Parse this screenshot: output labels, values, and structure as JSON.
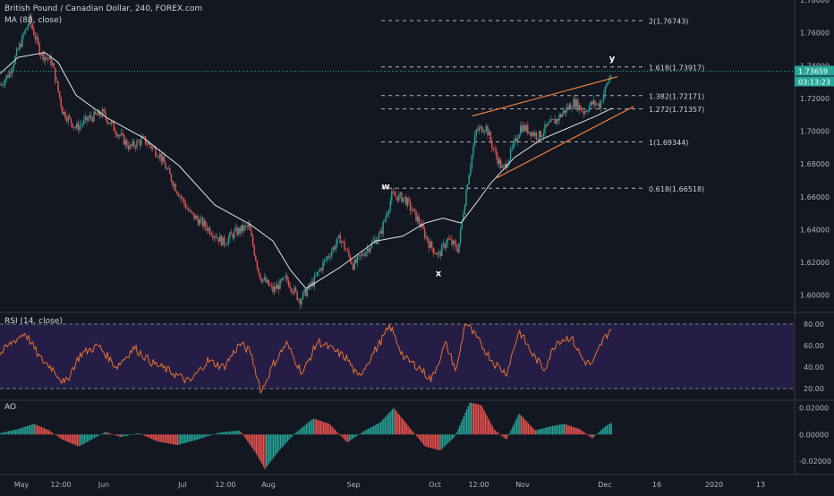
{
  "header": {
    "symbol_title": "British Pound / Canadian Dollar, 240, FOREX.com",
    "ma_legend": "MA (80, close)",
    "rsi_legend": "RSI (14, close)",
    "ao_legend": "AO"
  },
  "price_badges": {
    "last_price": "1.73659",
    "countdown": "03:13:23"
  },
  "colors": {
    "background": "#131722",
    "up_candle": "#26a69a",
    "down_candle": "#ef5350",
    "ma_line": "#e0e3eb",
    "rsi_line": "#f57c2c",
    "rsi_band": "#2a1e4d",
    "ao_up": "#26a69a",
    "ao_down": "#ef5350",
    "wedge_line": "#f2813a",
    "last_price": "#26a69a"
  },
  "chart_data": [
    {
      "type": "candlestick",
      "ylim": [
        1.59,
        1.78
      ],
      "y_ticks": [
        "1.78000",
        "1.76000",
        "1.74000",
        "1.72000",
        "1.70000",
        "1.68000",
        "1.66000",
        "1.64000",
        "1.62000",
        "1.60000"
      ],
      "x_ticks": [
        "May",
        "12:00",
        "Jun",
        "Jul",
        "12:00",
        "Aug",
        "Sep",
        "Oct",
        "12:00",
        "Nov",
        "Dec",
        "16",
        "2020",
        "13"
      ],
      "price_path": [
        {
          "t": 0,
          "p": 1.728
        },
        {
          "t": 10,
          "p": 1.735
        },
        {
          "t": 22,
          "p": 1.752
        },
        {
          "t": 33,
          "p": 1.768
        },
        {
          "t": 45,
          "p": 1.748
        },
        {
          "t": 58,
          "p": 1.742
        },
        {
          "t": 70,
          "p": 1.712
        },
        {
          "t": 85,
          "p": 1.702
        },
        {
          "t": 100,
          "p": 1.708
        },
        {
          "t": 115,
          "p": 1.711
        },
        {
          "t": 130,
          "p": 1.7
        },
        {
          "t": 145,
          "p": 1.69
        },
        {
          "t": 160,
          "p": 1.695
        },
        {
          "t": 178,
          "p": 1.686
        },
        {
          "t": 195,
          "p": 1.667
        },
        {
          "t": 212,
          "p": 1.65
        },
        {
          "t": 230,
          "p": 1.642
        },
        {
          "t": 250,
          "p": 1.632
        },
        {
          "t": 262,
          "p": 1.638
        },
        {
          "t": 278,
          "p": 1.642
        },
        {
          "t": 290,
          "p": 1.612
        },
        {
          "t": 305,
          "p": 1.603
        },
        {
          "t": 320,
          "p": 1.61
        },
        {
          "t": 335,
          "p": 1.597
        },
        {
          "t": 350,
          "p": 1.608
        },
        {
          "t": 362,
          "p": 1.62
        },
        {
          "t": 380,
          "p": 1.635
        },
        {
          "t": 395,
          "p": 1.618
        },
        {
          "t": 410,
          "p": 1.628
        },
        {
          "t": 425,
          "p": 1.637
        },
        {
          "t": 438,
          "p": 1.661
        },
        {
          "t": 452,
          "p": 1.659
        },
        {
          "t": 468,
          "p": 1.645
        },
        {
          "t": 480,
          "p": 1.631
        },
        {
          "t": 490,
          "p": 1.624
        },
        {
          "t": 500,
          "p": 1.634
        },
        {
          "t": 512,
          "p": 1.628
        },
        {
          "t": 522,
          "p": 1.668
        },
        {
          "t": 532,
          "p": 1.7
        },
        {
          "t": 543,
          "p": 1.703
        },
        {
          "t": 552,
          "p": 1.688
        },
        {
          "t": 562,
          "p": 1.676
        },
        {
          "t": 572,
          "p": 1.688
        },
        {
          "t": 582,
          "p": 1.703
        },
        {
          "t": 592,
          "p": 1.7
        },
        {
          "t": 602,
          "p": 1.697
        },
        {
          "t": 612,
          "p": 1.703
        },
        {
          "t": 622,
          "p": 1.707
        },
        {
          "t": 632,
          "p": 1.713
        },
        {
          "t": 642,
          "p": 1.718
        },
        {
          "t": 652,
          "p": 1.712
        },
        {
          "t": 662,
          "p": 1.717
        },
        {
          "t": 670,
          "p": 1.716
        },
        {
          "t": 678,
          "p": 1.728
        },
        {
          "t": 684,
          "p": 1.7366
        }
      ],
      "ma_path": [
        {
          "t": 0,
          "p": 1.735
        },
        {
          "t": 20,
          "p": 1.745
        },
        {
          "t": 50,
          "p": 1.748
        },
        {
          "t": 65,
          "p": 1.742
        },
        {
          "t": 85,
          "p": 1.722
        },
        {
          "t": 120,
          "p": 1.708
        },
        {
          "t": 160,
          "p": 1.696
        },
        {
          "t": 200,
          "p": 1.679
        },
        {
          "t": 240,
          "p": 1.655
        },
        {
          "t": 280,
          "p": 1.643
        },
        {
          "t": 305,
          "p": 1.633
        },
        {
          "t": 325,
          "p": 1.615
        },
        {
          "t": 342,
          "p": 1.604
        },
        {
          "t": 380,
          "p": 1.617
        },
        {
          "t": 420,
          "p": 1.633
        },
        {
          "t": 450,
          "p": 1.636
        },
        {
          "t": 475,
          "p": 1.644
        },
        {
          "t": 495,
          "p": 1.647
        },
        {
          "t": 515,
          "p": 1.644
        },
        {
          "t": 532,
          "p": 1.656
        },
        {
          "t": 548,
          "p": 1.668
        },
        {
          "t": 575,
          "p": 1.684
        },
        {
          "t": 605,
          "p": 1.695
        },
        {
          "t": 635,
          "p": 1.702
        },
        {
          "t": 665,
          "p": 1.709
        },
        {
          "t": 684,
          "p": 1.714
        }
      ],
      "last_price": 1.73659,
      "fib_levels": [
        {
          "label": "2(1.76743)",
          "value": 1.76743
        },
        {
          "label": "1.618(1.73917)",
          "value": 1.73917
        },
        {
          "label": "1.382(1.72171)",
          "value": 1.72171
        },
        {
          "label": "1.272(1.71357)",
          "value": 1.71357
        },
        {
          "label": "1(1.69344)",
          "value": 1.69344
        },
        {
          "label": "0.618(1.66518)",
          "value": 1.66518
        }
      ],
      "wave_labels": [
        {
          "label": "w",
          "t": 431,
          "p": 1.6645
        },
        {
          "label": "x",
          "t": 490,
          "p": 1.6115
        },
        {
          "label": "y",
          "t": 684,
          "p": 1.7425
        }
      ],
      "wedge_lines": [
        {
          "from": {
            "t": 528,
            "p": 1.7093
          },
          "to": {
            "t": 690,
            "p": 1.7332
          }
        },
        {
          "from": {
            "t": 555,
            "p": 1.6715
          },
          "to": {
            "t": 708,
            "p": 1.715
          }
        }
      ]
    },
    {
      "type": "line",
      "name": "RSI (14, close)",
      "ylim": [
        10,
        90
      ],
      "y_ticks": [
        "80.00",
        "60.00",
        "40.00",
        "20.00"
      ],
      "band": [
        20,
        80
      ],
      "rsi_path": [
        {
          "t": 0,
          "p": 52
        },
        {
          "t": 12,
          "p": 62
        },
        {
          "t": 28,
          "p": 72
        },
        {
          "t": 45,
          "p": 48
        },
        {
          "t": 60,
          "p": 38
        },
        {
          "t": 72,
          "p": 24
        },
        {
          "t": 90,
          "p": 52
        },
        {
          "t": 110,
          "p": 60
        },
        {
          "t": 130,
          "p": 40
        },
        {
          "t": 150,
          "p": 58
        },
        {
          "t": 170,
          "p": 44
        },
        {
          "t": 190,
          "p": 36
        },
        {
          "t": 212,
          "p": 26
        },
        {
          "t": 232,
          "p": 46
        },
        {
          "t": 250,
          "p": 40
        },
        {
          "t": 268,
          "p": 62
        },
        {
          "t": 280,
          "p": 54
        },
        {
          "t": 292,
          "p": 17
        },
        {
          "t": 305,
          "p": 42
        },
        {
          "t": 320,
          "p": 62
        },
        {
          "t": 338,
          "p": 34
        },
        {
          "t": 355,
          "p": 64
        },
        {
          "t": 372,
          "p": 56
        },
        {
          "t": 388,
          "p": 48
        },
        {
          "t": 400,
          "p": 30
        },
        {
          "t": 418,
          "p": 54
        },
        {
          "t": 436,
          "p": 78
        },
        {
          "t": 452,
          "p": 48
        },
        {
          "t": 468,
          "p": 40
        },
        {
          "t": 482,
          "p": 28
        },
        {
          "t": 498,
          "p": 62
        },
        {
          "t": 510,
          "p": 36
        },
        {
          "t": 520,
          "p": 82
        },
        {
          "t": 535,
          "p": 64
        },
        {
          "t": 552,
          "p": 44
        },
        {
          "t": 566,
          "p": 34
        },
        {
          "t": 580,
          "p": 74
        },
        {
          "t": 595,
          "p": 52
        },
        {
          "t": 608,
          "p": 38
        },
        {
          "t": 622,
          "p": 64
        },
        {
          "t": 638,
          "p": 68
        },
        {
          "t": 652,
          "p": 46
        },
        {
          "t": 662,
          "p": 42
        },
        {
          "t": 672,
          "p": 62
        },
        {
          "t": 684,
          "p": 78
        }
      ]
    },
    {
      "type": "bar",
      "name": "AO",
      "ylim": [
        -0.03,
        0.025
      ],
      "y_ticks": [
        "0.02000",
        "0.00000",
        "-0.02000"
      ],
      "ao_path": [
        {
          "t": 0,
          "p": 0.001
        },
        {
          "t": 20,
          "p": 0.004
        },
        {
          "t": 38,
          "p": 0.008
        },
        {
          "t": 55,
          "p": 0.003
        },
        {
          "t": 70,
          "p": -0.004
        },
        {
          "t": 88,
          "p": -0.009
        },
        {
          "t": 102,
          "p": -0.004
        },
        {
          "t": 118,
          "p": 0.002
        },
        {
          "t": 135,
          "p": -0.002
        },
        {
          "t": 155,
          "p": 0.001
        },
        {
          "t": 175,
          "p": -0.005
        },
        {
          "t": 198,
          "p": -0.008
        },
        {
          "t": 220,
          "p": -0.004
        },
        {
          "t": 245,
          "p": 0.0015
        },
        {
          "t": 268,
          "p": 0.003
        },
        {
          "t": 285,
          "p": -0.013
        },
        {
          "t": 296,
          "p": -0.026
        },
        {
          "t": 312,
          "p": -0.012
        },
        {
          "t": 330,
          "p": 0.001
        },
        {
          "t": 350,
          "p": 0.012
        },
        {
          "t": 368,
          "p": 0.008
        },
        {
          "t": 388,
          "p": -0.006
        },
        {
          "t": 408,
          "p": 0.003
        },
        {
          "t": 425,
          "p": 0.009
        },
        {
          "t": 440,
          "p": 0.02
        },
        {
          "t": 458,
          "p": 0.005
        },
        {
          "t": 475,
          "p": -0.009
        },
        {
          "t": 492,
          "p": -0.012
        },
        {
          "t": 508,
          "p": -0.002
        },
        {
          "t": 525,
          "p": 0.024
        },
        {
          "t": 538,
          "p": 0.022
        },
        {
          "t": 552,
          "p": 0.004
        },
        {
          "t": 566,
          "p": -0.004
        },
        {
          "t": 580,
          "p": 0.016
        },
        {
          "t": 598,
          "p": 0.003
        },
        {
          "t": 615,
          "p": 0.006
        },
        {
          "t": 630,
          "p": 0.008
        },
        {
          "t": 648,
          "p": 0.004
        },
        {
          "t": 662,
          "p": -0.003
        },
        {
          "t": 676,
          "p": 0.006
        },
        {
          "t": 684,
          "p": 0.009
        }
      ]
    }
  ]
}
